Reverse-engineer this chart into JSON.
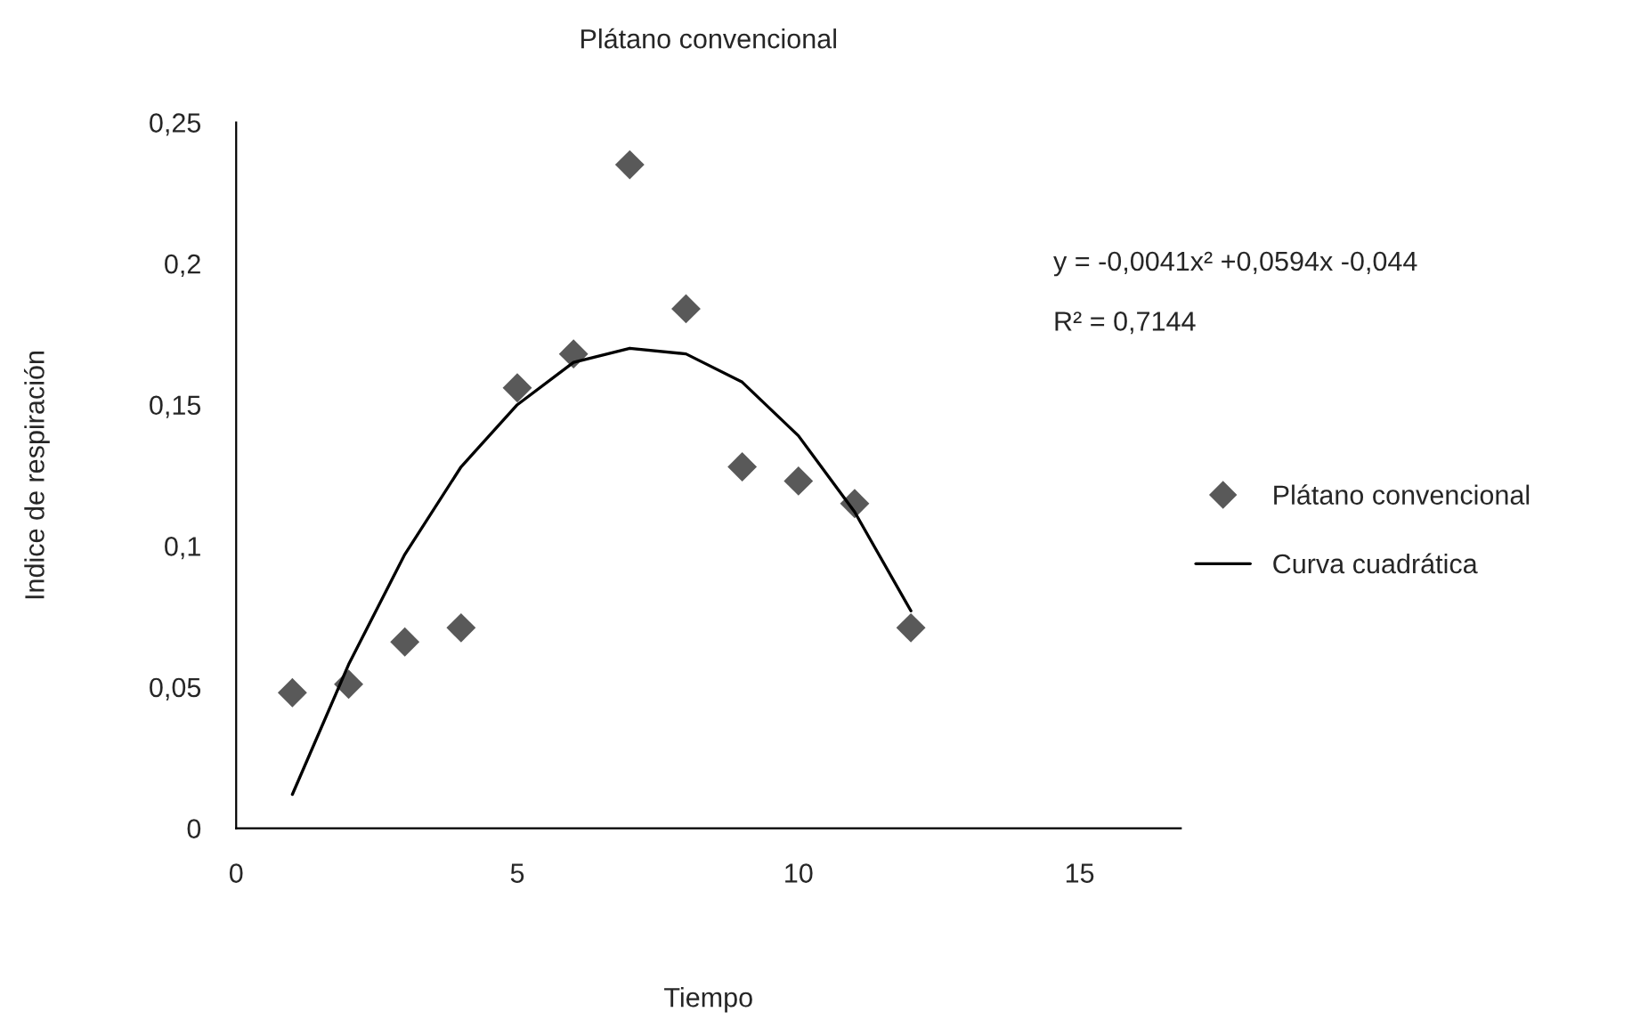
{
  "chart_data": {
    "type": "scatter",
    "title": "Plátano convencional",
    "xlabel": "Tiempo",
    "ylabel": "Indice de respiración",
    "xlim": [
      0,
      16.8
    ],
    "xticks": [
      0,
      5,
      10,
      15
    ],
    "ylim": [
      0,
      0.25
    ],
    "yticks": [
      {
        "value": 0,
        "label": "0"
      },
      {
        "value": 0.05,
        "label": "0,05"
      },
      {
        "value": 0.1,
        "label": "0,1"
      },
      {
        "value": 0.15,
        "label": "0,15"
      },
      {
        "value": 0.2,
        "label": "0,2"
      },
      {
        "value": 0.25,
        "label": "0,25"
      }
    ],
    "series": [
      {
        "name": "Plátano convencional",
        "marker": "diamond",
        "color": "#595959",
        "x": [
          1,
          2,
          3,
          4,
          5,
          6,
          7,
          8,
          9,
          10,
          11,
          12
        ],
        "values": [
          0.048,
          0.051,
          0.066,
          0.071,
          0.156,
          0.168,
          0.235,
          0.184,
          0.128,
          0.123,
          0.115,
          0.071
        ]
      },
      {
        "name": "Curva cuadrática",
        "type": "line",
        "marker": "none",
        "line_style": "solid",
        "color": "#000000",
        "x": [
          1,
          2,
          3,
          4,
          5,
          6,
          7,
          8,
          9,
          10,
          11,
          12
        ],
        "values": [
          0.012,
          0.058,
          0.097,
          0.128,
          0.15,
          0.165,
          0.17,
          0.168,
          0.158,
          0.139,
          0.112,
          0.077
        ]
      }
    ],
    "annotations": [
      "y = -0,0041x² +0,0594x -0,044",
      "R² = 0,7144"
    ],
    "legend": "right",
    "grid": false
  }
}
